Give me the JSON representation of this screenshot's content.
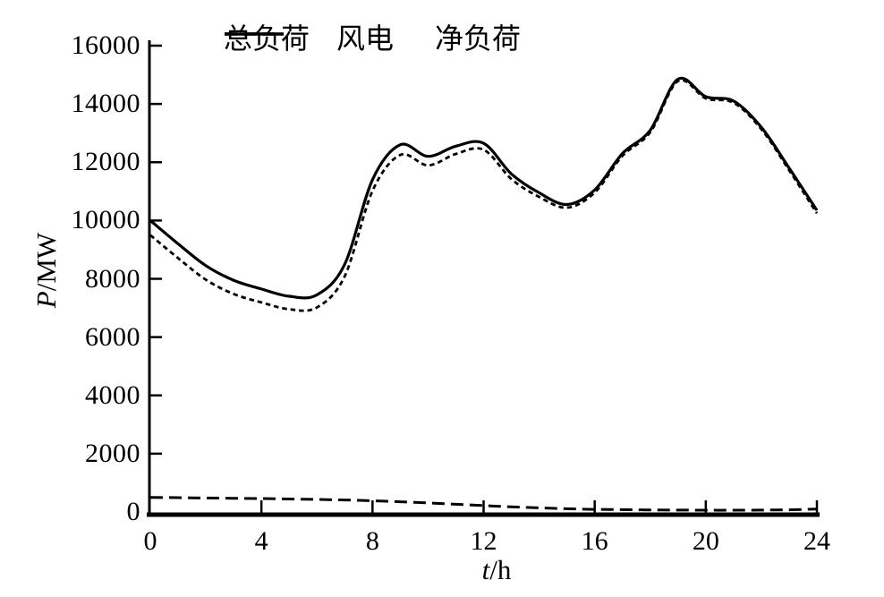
{
  "figure": {
    "background": "#ffffff",
    "line_color": "#000000"
  },
  "axes": {
    "y_title_symbol": "P",
    "y_title_unit": "/MW",
    "x_title_symbol": "t",
    "x_title_unit": "/h"
  },
  "chart_data": {
    "type": "line",
    "title": "",
    "xlabel": "t/h",
    "ylabel": "P/MW",
    "xlim": [
      0,
      24
    ],
    "ylim": [
      0,
      16000
    ],
    "x_ticks": [
      0,
      4,
      8,
      12,
      16,
      20,
      24
    ],
    "y_ticks": [
      0,
      2000,
      4000,
      6000,
      8000,
      10000,
      12000,
      14000,
      16000
    ],
    "grid": false,
    "legend_position": "top-inside",
    "x_hours": [
      0,
      1,
      2,
      3,
      4,
      5,
      6,
      7,
      8,
      9,
      10,
      11,
      12,
      13,
      14,
      15,
      16,
      17,
      18,
      19,
      20,
      21,
      22,
      23,
      24
    ],
    "series": [
      {
        "id": "total-load",
        "name": "总负荷",
        "line_style": "solid",
        "values": [
          10000,
          9200,
          8450,
          7950,
          7650,
          7400,
          7450,
          8500,
          11400,
          12600,
          12200,
          12550,
          12650,
          11600,
          10950,
          10550,
          11050,
          12300,
          13100,
          14850,
          14250,
          14100,
          13200,
          11800,
          10350
        ]
      },
      {
        "id": "wind-power",
        "name": "风电",
        "line_style": "long-dash",
        "values": [
          500,
          490,
          480,
          470,
          460,
          445,
          430,
          410,
          385,
          350,
          310,
          265,
          220,
          175,
          140,
          110,
          90,
          80,
          70,
          65,
          60,
          60,
          65,
          75,
          100
        ]
      },
      {
        "id": "net-load",
        "name": "净负荷",
        "line_style": "short-dash",
        "values": [
          9500,
          8710,
          7970,
          7480,
          7190,
          6955,
          7020,
          8090,
          11015,
          12250,
          11890,
          12285,
          12430,
          11425,
          10810,
          10440,
          10960,
          12220,
          13030,
          14785,
          14190,
          14040,
          13135,
          11725,
          10250
        ]
      }
    ]
  }
}
